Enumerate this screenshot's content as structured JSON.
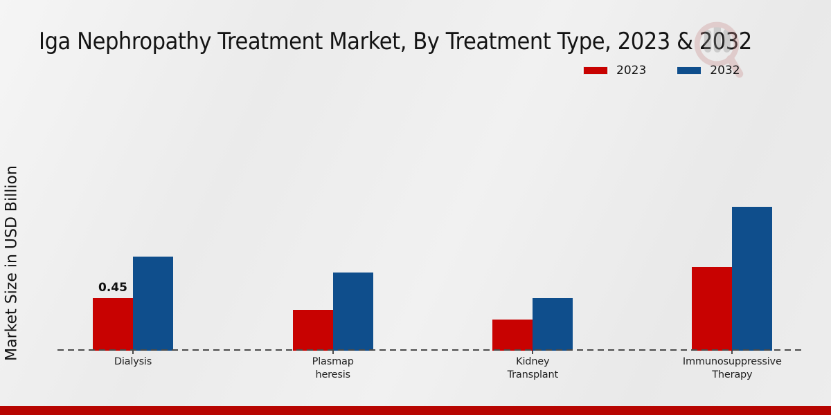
{
  "title": "Iga Nephropathy Treatment Market, By Treatment Type, 2023 & 2032",
  "y_axis_label": "Market Size in USD Billion",
  "legend": [
    {
      "label": "2023",
      "color": "#c80201"
    },
    {
      "label": "2032",
      "color": "#0f4e8c"
    }
  ],
  "watermark_icon": "magnifier-bar-chart-logo",
  "accent": {
    "bottom_bar_color": "#b70501"
  },
  "chart_data": {
    "type": "bar",
    "categories": [
      "Dialysis",
      "Plasmapheresis",
      "Kidney Transplant",
      "Immunosuppressive Therapy"
    ],
    "tick_label_lines": [
      [
        "Dialysis"
      ],
      [
        "Plasmap",
        "heresis"
      ],
      [
        "Kidney",
        "Transplant"
      ],
      [
        "Immunosuppressive",
        "Therapy"
      ]
    ],
    "series": [
      {
        "name": "2023",
        "color": "#c80201",
        "values": [
          0.45,
          0.35,
          0.27,
          0.72
        ]
      },
      {
        "name": "2032",
        "color": "#0f4e8c",
        "values": [
          0.81,
          0.67,
          0.45,
          1.24
        ]
      }
    ],
    "value_labels": [
      {
        "series": "2023",
        "category": "Dialysis",
        "text": "0.45"
      }
    ],
    "title": "Iga Nephropathy Treatment Market, By Treatment Type, 2023 & 2032",
    "xlabel": "",
    "ylabel": "Market Size in USD Billion",
    "ylim": [
      0,
      1.4
    ],
    "grid": false,
    "legend_position": "top-right",
    "baseline_style": "dashed"
  }
}
